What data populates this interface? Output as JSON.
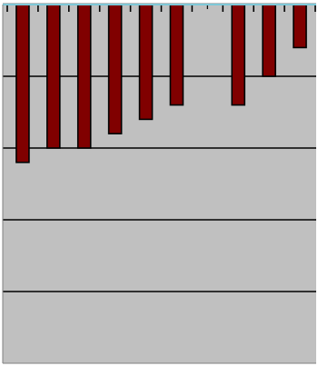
{
  "chart_data": {
    "type": "bar",
    "orientation": "vertical-downward",
    "bars_hang_from_top_axis": true,
    "grid": "horizontal-lines-on",
    "legend": "none",
    "title": "",
    "xlabel": "",
    "ylabel": "",
    "tick_labels_visible": false,
    "num_slots": 10,
    "values": [
      -4.4,
      -4.0,
      -4.0,
      -3.6,
      -3.2,
      -2.8,
      null,
      -2.8,
      -2.0,
      -1.2
    ],
    "ylim": [
      -10,
      0
    ],
    "gridline_step": 2,
    "colors": {
      "plot_background": "#c0c0c0",
      "bar_fill": "#800000",
      "bar_stroke": "#000000",
      "grid_line": "#000000",
      "top_axis": "#7ec8d8",
      "frame": "#808080",
      "page_background": "#ffffff"
    }
  }
}
